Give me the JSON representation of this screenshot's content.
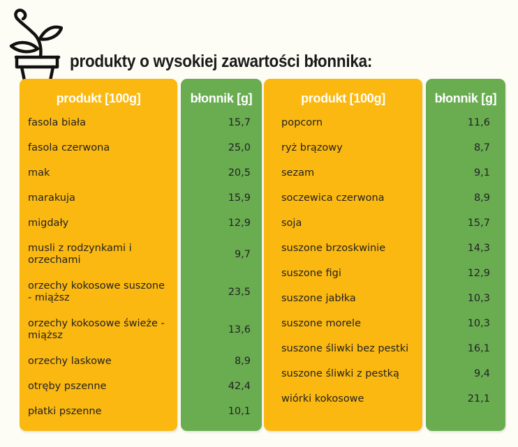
{
  "title": "produkty o wysokiej zawartości błonnika:",
  "colors": {
    "orange": "#fbb811",
    "green": "#6aad51",
    "background": "#fdfdf6"
  },
  "icon": "sprout-in-pot-icon",
  "tables": [
    {
      "headers": {
        "product": "produkt [100g]",
        "fiber": "błonnik [g]"
      },
      "rows": [
        {
          "name": "fasola biała",
          "value": "15,7"
        },
        {
          "name": "fasola czerwona",
          "value": "25,0"
        },
        {
          "name": "mak",
          "value": "20,5"
        },
        {
          "name": "marakuja",
          "value": "15,9"
        },
        {
          "name": "migdały",
          "value": "12,9"
        },
        {
          "name": "musli z rodzynkami i orzechami",
          "value": "9,7"
        },
        {
          "name": "orzechy kokosowe suszone - miąższ",
          "value": "23,5"
        },
        {
          "name": "orzechy kokosowe świeże - miąższ",
          "value": "13,6"
        },
        {
          "name": "orzechy laskowe",
          "value": "8,9"
        },
        {
          "name": "otręby pszenne",
          "value": "42,4"
        },
        {
          "name": "płatki pszenne",
          "value": "10,1"
        }
      ]
    },
    {
      "headers": {
        "product": "produkt [100g]",
        "fiber": "błonnik [g]"
      },
      "rows": [
        {
          "name": "popcorn",
          "value": "11,6"
        },
        {
          "name": "ryż brązowy",
          "value": "8,7"
        },
        {
          "name": "sezam",
          "value": "9,1"
        },
        {
          "name": "soczewica czerwona",
          "value": "8,9"
        },
        {
          "name": "soja",
          "value": "15,7"
        },
        {
          "name": "suszone brzoskwinie",
          "value": "14,3"
        },
        {
          "name": "suszone figi",
          "value": "12,9"
        },
        {
          "name": "suszone jabłka",
          "value": "10,3"
        },
        {
          "name": "suszone morele",
          "value": "10,3"
        },
        {
          "name": "suszone śliwki bez pestki",
          "value": "16,1"
        },
        {
          "name": "suszone śliwki z pestką",
          "value": "9,4"
        },
        {
          "name": "wiórki kokosowe",
          "value": "21,1"
        }
      ]
    }
  ]
}
